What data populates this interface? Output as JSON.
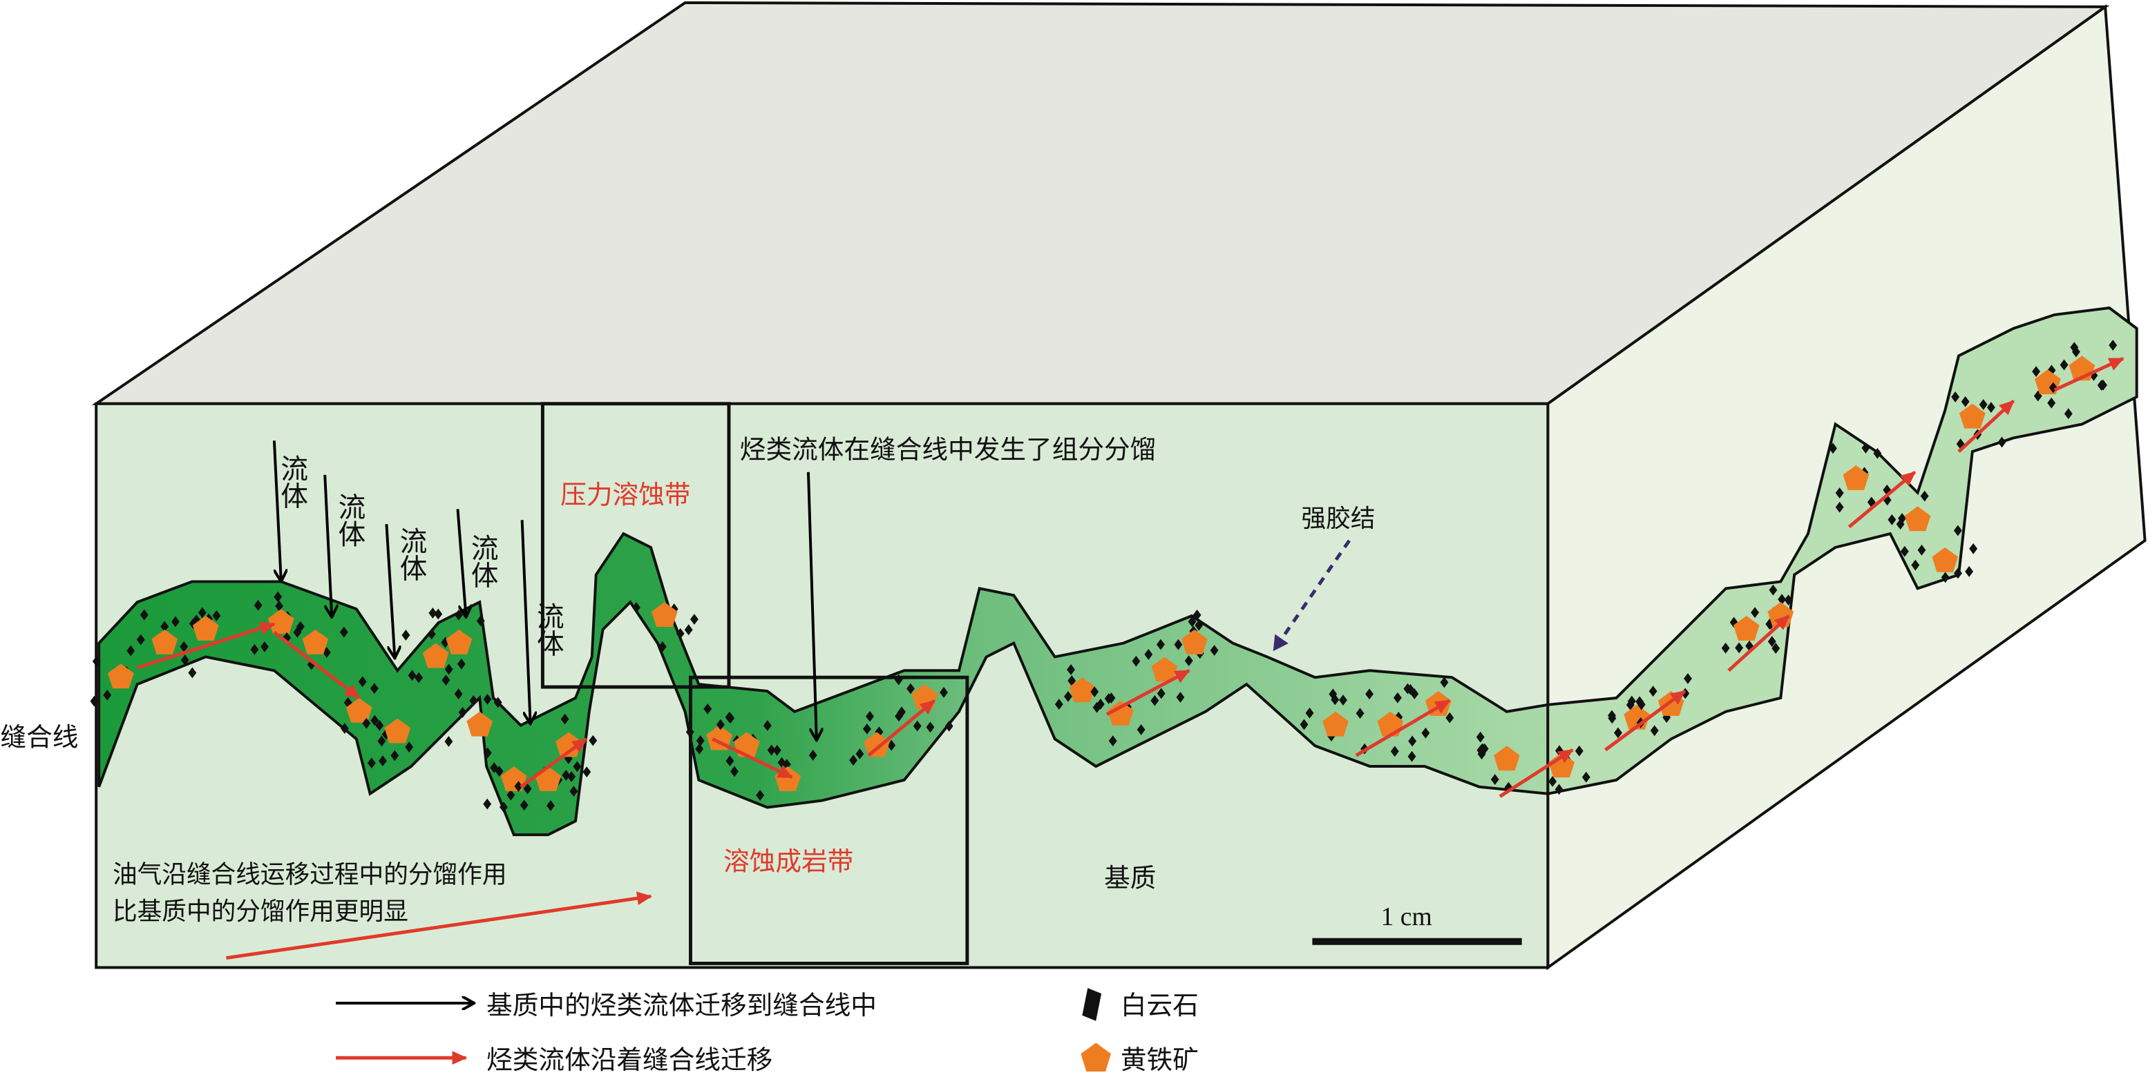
{
  "stylolite_label": "缝合线",
  "fluid_labels": [
    "流体",
    "流体",
    "流体",
    "流体",
    "流体"
  ],
  "pressure_zone": "压力溶蚀带",
  "fractionation_note": "烃类流体在缝合线中发生了组分分馏",
  "cementation": "强胶结",
  "dissolution_zone": "溶蚀成岩带",
  "matrix": "基质",
  "scale_bar": "1 cm",
  "migration_note": [
    "油气沿缝合线运移过程中的分馏作用",
    "比基质中的分馏作用更明显"
  ],
  "legend": [
    "基质中的烃类流体迁移到缝合线中",
    "烃类流体沿着缝合线迁移",
    "白云石",
    "黄铁矿"
  ]
}
